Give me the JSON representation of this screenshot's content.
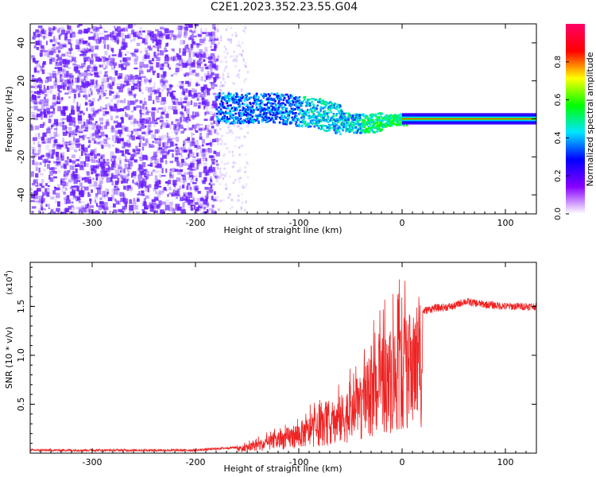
{
  "title": "C2E1.2023.352.23.55.G04",
  "chart_data": [
    {
      "type": "heatmap",
      "xlabel": "Height of straight line (km)",
      "ylabel": "Frequency (Hz)",
      "xlim": [
        -360,
        130
      ],
      "ylim": [
        -50,
        50
      ],
      "xticks": [
        -300,
        -200,
        -100,
        0,
        100
      ],
      "yticks": [
        -40,
        -20,
        0,
        20,
        40
      ],
      "colorbar": {
        "label": "Normalized spectral amplitude",
        "range": [
          0.0,
          1.0
        ],
        "ticks": [
          0.0,
          0.2,
          0.4,
          0.6,
          0.8
        ],
        "colormap": [
          "#ffffff",
          "#8800ff",
          "#0000ff",
          "#00e5ff",
          "#00ff00",
          "#ffff00",
          "#ff0000",
          "#ff0066"
        ]
      },
      "features": {
        "noise_region_x": [
          -360,
          -180
        ],
        "noise_color": "#6a1cff",
        "signal_band_start_x": -180,
        "signal_trend_freq": [
          [
            -180,
            6
          ],
          [
            -120,
            6
          ],
          [
            -80,
            3
          ],
          [
            -50,
            -2
          ],
          [
            -30,
            -2
          ],
          [
            -10,
            0
          ],
          [
            5,
            0
          ],
          [
            130,
            0
          ]
        ],
        "steady_tone_x": [
          0,
          130
        ],
        "steady_tone_freq": 0
      }
    },
    {
      "type": "line",
      "xlabel": "Height of straight line (km)",
      "ylabel": "SNR (10 * v/v)",
      "ymult_label": "(x10",
      "ymult_exp": "4",
      "xlim": [
        -360,
        130
      ],
      "ylim": [
        0,
        1.95
      ],
      "xticks": [
        -300,
        -200,
        -100,
        0,
        100
      ],
      "yticks": [
        0.5,
        1.0,
        1.5
      ],
      "ytick_labels": [
        "0.5",
        "1.0",
        "1.5"
      ],
      "series": [
        {
          "color": "#ee2222",
          "envelope_x": [
            -360,
            -200,
            -160,
            -140,
            -120,
            -100,
            -80,
            -60,
            -40,
            -30,
            -20,
            -10,
            0,
            10,
            20,
            30,
            50,
            60,
            80,
            100,
            130
          ],
          "envelope_y": [
            0.03,
            0.03,
            0.06,
            0.12,
            0.2,
            0.3,
            0.4,
            0.55,
            0.75,
            0.95,
            1.1,
            1.2,
            1.3,
            1.35,
            1.45,
            1.48,
            1.5,
            1.55,
            1.52,
            1.5,
            1.5
          ]
        }
      ]
    }
  ]
}
